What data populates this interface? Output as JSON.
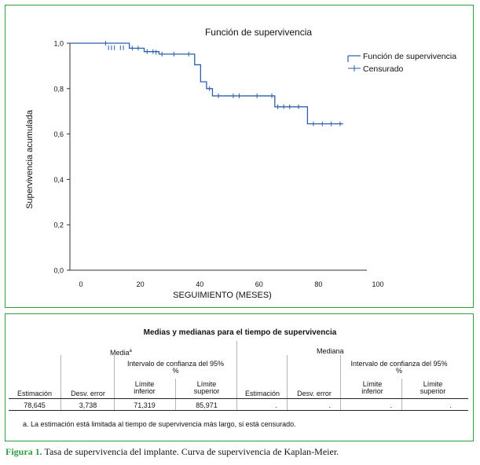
{
  "chart_data": {
    "type": "line",
    "title": "Función de supervivencia",
    "xlabel": "SEGUIMIENTO (MESES)",
    "ylabel": "Supervivencia acumulada",
    "xlim": [
      0,
      100
    ],
    "ylim": [
      0.0,
      1.0
    ],
    "x_ticks": [
      0,
      20,
      40,
      60,
      80,
      100
    ],
    "y_ticks": [
      "0,0",
      "0,2",
      "0,4",
      "0,6",
      "0,8",
      "1,0"
    ],
    "y_tick_values": [
      0.0,
      0.2,
      0.4,
      0.6,
      0.8,
      1.0
    ],
    "legend": [
      "Función de supervivencia",
      "Censurado"
    ],
    "legend_position": "top-right",
    "series": [
      {
        "name": "Función de supervivencia",
        "steps": [
          {
            "x": 0,
            "y": 1.0
          },
          {
            "x": 20,
            "y": 0.978
          },
          {
            "x": 25,
            "y": 0.963
          },
          {
            "x": 30,
            "y": 0.952
          },
          {
            "x": 42,
            "y": 0.905
          },
          {
            "x": 44,
            "y": 0.83
          },
          {
            "x": 46,
            "y": 0.8
          },
          {
            "x": 48,
            "y": 0.768
          },
          {
            "x": 69,
            "y": 0.72
          },
          {
            "x": 80,
            "y": 0.645
          },
          {
            "x": 92,
            "y": 0.645
          }
        ]
      }
    ],
    "censored": [
      {
        "x": 12,
        "y": 1.0
      },
      {
        "x": 13,
        "y": 0.98
      },
      {
        "x": 14,
        "y": 0.98
      },
      {
        "x": 15,
        "y": 0.98
      },
      {
        "x": 17,
        "y": 0.98
      },
      {
        "x": 18,
        "y": 0.98
      },
      {
        "x": 21,
        "y": 0.978
      },
      {
        "x": 23,
        "y": 0.978
      },
      {
        "x": 26,
        "y": 0.963
      },
      {
        "x": 28,
        "y": 0.963
      },
      {
        "x": 29,
        "y": 0.96
      },
      {
        "x": 31,
        "y": 0.952
      },
      {
        "x": 35,
        "y": 0.952
      },
      {
        "x": 40,
        "y": 0.952
      },
      {
        "x": 47,
        "y": 0.8
      },
      {
        "x": 50,
        "y": 0.768
      },
      {
        "x": 55,
        "y": 0.768
      },
      {
        "x": 57,
        "y": 0.768
      },
      {
        "x": 63,
        "y": 0.768
      },
      {
        "x": 68,
        "y": 0.768
      },
      {
        "x": 70,
        "y": 0.72
      },
      {
        "x": 72,
        "y": 0.72
      },
      {
        "x": 74,
        "y": 0.72
      },
      {
        "x": 77,
        "y": 0.72
      },
      {
        "x": 82,
        "y": 0.645
      },
      {
        "x": 85,
        "y": 0.645
      },
      {
        "x": 88,
        "y": 0.645
      },
      {
        "x": 91,
        "y": 0.645
      }
    ],
    "colors": {
      "line": "#2b5faa",
      "axis": "#333333"
    }
  },
  "table": {
    "title": "Medias y medianas para el tiempo de supervivencia",
    "media_label": "Media",
    "media_sup": "a",
    "mediana_label": "Mediana",
    "ci_label": "Intervalo de confianza del 95%",
    "ci_label_media": "Intervalo de confianza del 95%",
    "ci_label_mediana": "Intervalo de confianza del 95%",
    "ci_wrap": "%",
    "headers": {
      "estimacion": "Estimación",
      "desv_error": "Desv. error",
      "limite_inferior_1": "Límite",
      "limite_inferior_2": "inferior",
      "limite_superior_1": "Límite",
      "limite_superior_2": "superior"
    },
    "row": {
      "media_estimacion": "78,645",
      "media_desv_error": "3,738",
      "media_limite_inferior": "71,319",
      "media_limite_superior": "85,971",
      "mediana_estimacion": ".",
      "mediana_desv_error": ".",
      "mediana_limite_inferior": ".",
      "mediana_limite_superior": "."
    },
    "footnote": "a. La estimación está limitada al tiempo de supervivencia más largo, si está censurado."
  },
  "caption": {
    "figure_label": "Figura 1.",
    "text": "Tasa de supervivencia del implante. Curva de supervivencia de Kaplan-Meier."
  }
}
